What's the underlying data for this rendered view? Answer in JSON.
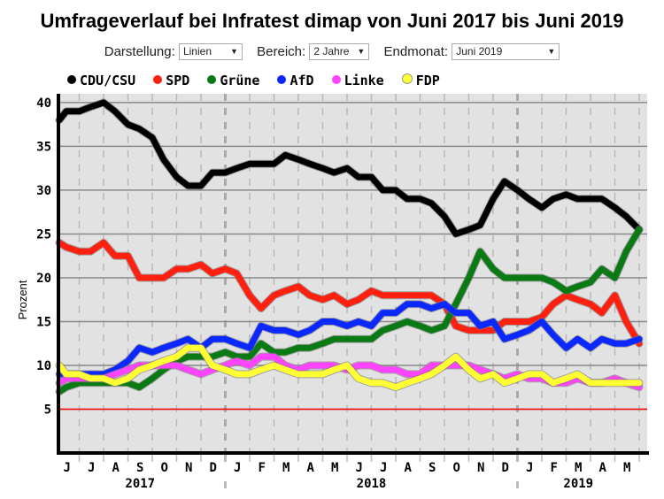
{
  "title": "Umfrageverlauf bei Infratest dimap von Juni 2017 bis Juni 2019",
  "controls": [
    {
      "label": "Darstellung:",
      "value": "Linien"
    },
    {
      "label": "Bereich:",
      "value": "2 Jahre"
    },
    {
      "label": "Endmonat:",
      "value": "Juni 2019"
    }
  ],
  "chart_data": {
    "type": "line",
    "title": "Umfrageverlauf bei Infratest dimap von Juni 2017 bis Juni 2019",
    "xlabel": "",
    "ylabel": "Prozent",
    "ylim": [
      0,
      41
    ],
    "yticks": [
      5,
      10,
      15,
      20,
      25,
      30,
      35,
      40
    ],
    "threshold": {
      "value": 5,
      "color": "#ff0000"
    },
    "grid": true,
    "legend_position": "top",
    "month_labels": [
      "J",
      "J",
      "A",
      "S",
      "O",
      "N",
      "D",
      "J",
      "F",
      "M",
      "A",
      "M",
      "J",
      "J",
      "A",
      "S",
      "O",
      "N",
      "D",
      "J",
      "F",
      "M",
      "A",
      "M"
    ],
    "year_labels": [
      "2017",
      "2018",
      "2019"
    ],
    "x": [
      "2017-06-01",
      "2017-06-15",
      "2017-07-01",
      "2017-07-15",
      "2017-08-01",
      "2017-08-15",
      "2017-09-01",
      "2017-09-15",
      "2017-10-01",
      "2017-10-15",
      "2017-11-01",
      "2017-11-15",
      "2017-12-01",
      "2017-12-15",
      "2018-01-01",
      "2018-01-15",
      "2018-02-01",
      "2018-02-15",
      "2018-03-01",
      "2018-03-15",
      "2018-04-01",
      "2018-04-15",
      "2018-05-01",
      "2018-05-15",
      "2018-06-01",
      "2018-06-15",
      "2018-07-01",
      "2018-07-15",
      "2018-08-01",
      "2018-08-15",
      "2018-09-01",
      "2018-09-15",
      "2018-10-01",
      "2018-10-15",
      "2018-11-01",
      "2018-11-15",
      "2018-12-01",
      "2018-12-15",
      "2019-01-01",
      "2019-01-15",
      "2019-02-01",
      "2019-02-15",
      "2019-03-01",
      "2019-03-15",
      "2019-04-01",
      "2019-04-15",
      "2019-05-01",
      "2019-05-15",
      "2019-06-01"
    ],
    "series": [
      {
        "name": "CDU/CSU",
        "color": "#000000",
        "values": [
          38,
          39,
          39,
          39.5,
          40,
          39,
          37.5,
          37,
          36,
          33.5,
          31.5,
          30.5,
          30.5,
          32,
          32,
          32.5,
          33,
          33,
          33,
          34,
          33.5,
          33,
          32.5,
          32,
          32.5,
          31.5,
          31.5,
          30,
          30,
          29,
          29,
          28.5,
          27,
          25,
          25.5,
          26,
          29,
          31,
          30,
          29,
          28,
          29,
          29.5,
          29,
          29,
          29,
          28,
          27,
          25.5
        ]
      },
      {
        "name": "SPD",
        "color": "#ff2010",
        "values": [
          24,
          23.5,
          23,
          23,
          24,
          22.5,
          22.5,
          20,
          20,
          20,
          21,
          21,
          21.5,
          20.5,
          21,
          20.5,
          18,
          16.5,
          18,
          18.5,
          19,
          18,
          17.5,
          18,
          17,
          17.5,
          18.5,
          18,
          18,
          18,
          18,
          18,
          17,
          14.5,
          14,
          14,
          14,
          15,
          15,
          15,
          15.5,
          17,
          18,
          17.5,
          17,
          16,
          18,
          15,
          12.5
        ]
      },
      {
        "name": "Grüne",
        "color": "#0a7a14",
        "values": [
          7,
          7.5,
          8,
          8,
          8,
          8,
          8,
          7.5,
          8.5,
          9.5,
          10.5,
          11,
          11,
          11,
          11.5,
          11,
          11,
          12.5,
          11.5,
          11.5,
          12,
          12,
          12.5,
          13,
          13,
          13,
          13,
          14,
          14.5,
          15,
          14.5,
          14,
          14.5,
          17,
          20,
          23,
          21,
          20,
          20,
          20,
          20,
          19.5,
          18.5,
          19,
          19.5,
          21,
          20,
          23,
          25.5
        ]
      },
      {
        "name": "AfD",
        "color": "#0a28ff",
        "values": [
          9,
          9,
          9,
          9,
          9,
          9.5,
          10.5,
          12,
          11.5,
          12,
          12.5,
          13,
          12,
          13,
          13,
          12.5,
          12,
          14.5,
          14,
          14,
          13.5,
          14,
          15,
          15,
          14.5,
          15,
          14.5,
          16,
          16,
          17,
          17,
          16.5,
          17,
          16,
          16,
          14.5,
          15,
          13,
          13.5,
          14,
          15,
          13.5,
          12,
          13,
          12,
          13,
          12.5,
          12.5,
          13
        ]
      },
      {
        "name": "Linke",
        "color": "#ff44ff",
        "values": [
          8,
          8.5,
          8.5,
          8.5,
          8.5,
          9,
          9.5,
          10,
          10,
          10,
          10,
          9.5,
          9,
          9.5,
          10,
          10.5,
          10,
          11,
          11,
          10,
          9.5,
          10,
          10,
          10,
          9.5,
          10,
          10,
          9.5,
          9.5,
          9,
          9,
          10,
          10,
          10,
          10,
          9.5,
          9,
          8.5,
          9,
          8.5,
          8.5,
          8,
          8,
          8.5,
          8,
          8,
          8.5,
          8,
          7.5
        ]
      },
      {
        "name": "FDP",
        "color": "#ffff33",
        "values": [
          10,
          9,
          9,
          8.5,
          8.5,
          8,
          8.5,
          9.5,
          10,
          10.5,
          11,
          12,
          12,
          10,
          9.5,
          9,
          9,
          9.5,
          10,
          9.5,
          9,
          9,
          9,
          9.5,
          10,
          8.5,
          8,
          8,
          7.5,
          8,
          8.5,
          9,
          10,
          11,
          9.5,
          8.5,
          9,
          8,
          8.5,
          9,
          9,
          8,
          8.5,
          9,
          8,
          8,
          8,
          8,
          8
        ]
      }
    ]
  }
}
